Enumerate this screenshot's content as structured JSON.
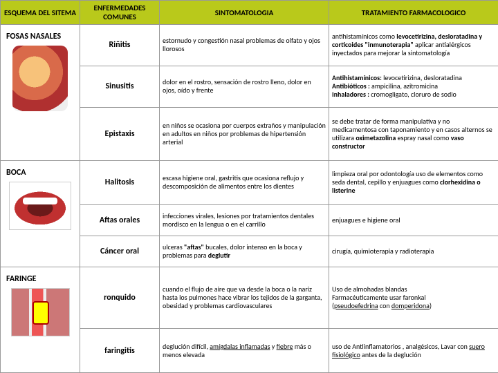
{
  "headers": {
    "c1": "ESQUEMA DEL SITEMA",
    "c2": "ENFERMEDADES COMUNES",
    "c3": "SINTOMATOLOGIA",
    "c4": "TRATAMIENTO FARMACOLOGICO"
  },
  "systems": {
    "fosas": "FOSAS NASALES",
    "boca": "BOCA",
    "faringe": "FARINGE"
  },
  "rows": {
    "rinitis": {
      "name": "Riñitis",
      "sym": "estornudo y congestión nasal problemas de olfato y ojos llorosos",
      "trt_pre": "antihistamínicos como ",
      "trt_bold": "levocetirizina, desloratadina y corticoides \"inmunoterapia\"",
      "trt_post": " aplicar antialérgicos inyectados para mejorar la sintomatología"
    },
    "sinusitis": {
      "name": "Sinusitis",
      "sym": "dolor en el rostro, sensación de rostro lleno, dolor en ojos, oído y frente",
      "trt_l1b": "Antihistamínicos:",
      "trt_l1": " levocetirizina, desloratadina",
      "trt_l2b": " Antibióticos :",
      "trt_l2": " ampicilina,  azitromicina",
      "trt_l3b": "Inhaladores :",
      "trt_l3": "  cromogligato,  cloruro de sodio"
    },
    "epistaxis": {
      "name": "Epistaxis",
      "sym": "en niños se ocasiona por cuerpos extraños y manipulación en adultos  en niños por problemas de hipertensión arterial",
      "trt_pre": " se debe tratar de forma manipulativa y no medicamentosa con taponamiento y en casos alternos se utilizara ",
      "trt_bold1": "oximetazolina",
      "trt_mid": "  espray nasal como ",
      "trt_bold2": "vaso constructor"
    },
    "halitosis": {
      "name": "Halitosis",
      "sym": "escasa higiene oral,  gastritis que ocasiona reflujo y descomposición de alimentos entre los dientes",
      "trt_pre": "limpieza oral por odontología uso de elementos como seda dental, cepillo y enjuagues como ",
      "trt_bold": "clorhexidina o listerine"
    },
    "aftas": {
      "name": "Aftas orales",
      "sym": "infecciones virales, lesiones por tratamientos dentales mordisco en la lengua o en el carrillo",
      "trt": "enjuagues e higiene oral"
    },
    "cancer": {
      "name": "Cáncer oral",
      "sym_pre": "ulceras ",
      "sym_bold": "\"aftas\"",
      "sym_post": " bucales, dolor intenso en la boca y problemas para ",
      "sym_bold2": "deglutir",
      "trt": "cirugía, quimioterapia y radioterapia"
    },
    "ronquido": {
      "name": "ronquido",
      "sym": "cuando el flujo de aire que va desde la boca o la nariz hasta los pulmones hace vibrar los tejidos de la garganta, obesidad y problemas cardiovasculares",
      "trt_l1": "Uso de almohadas blandas",
      "trt_l2": "Farmacéuticamente usar faronkal",
      "trt_l3a": "(",
      "trt_u1": "pseudoefedrina",
      "trt_l3b": " con ",
      "trt_u2": "domperidona",
      "trt_l3c": ")"
    },
    "faringitis": {
      "name": "faringitis",
      "sym_pre": "deglución difícil, ",
      "sym_u1": "amígdalas inflamadas",
      "sym_mid": " y ",
      "sym_u2": "fiebre",
      "sym_post": " más o menos elevada",
      "trt_pre": "uso de Antiinflamatorios , analgésicos,  Lavar con ",
      "trt_u": "suero fisiológico",
      "trt_post": " antes de la deglución"
    }
  }
}
